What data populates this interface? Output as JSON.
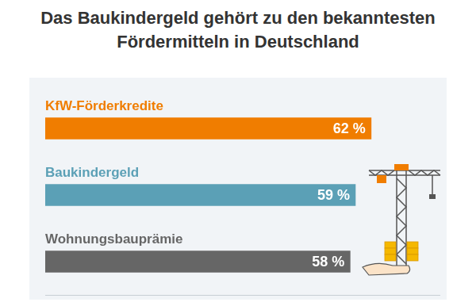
{
  "chart_data": {
    "type": "bar",
    "title": "Das Baukindergeld gehört zu den bekanntesten Fördermitteln in Deutschland",
    "categories": [
      "KfW-Förderkredite",
      "Baukindergeld",
      "Wohnungsbauprämie"
    ],
    "values": [
      62,
      59,
      58
    ],
    "value_labels": [
      "62 %",
      "59 %",
      "58 %"
    ],
    "colors": [
      "#f07d00",
      "#5ba0b6",
      "#666666"
    ],
    "orientation": "horizontal",
    "data_labels": true,
    "xlim": [
      0,
      75
    ],
    "tick_labels": false,
    "grid": false
  }
}
